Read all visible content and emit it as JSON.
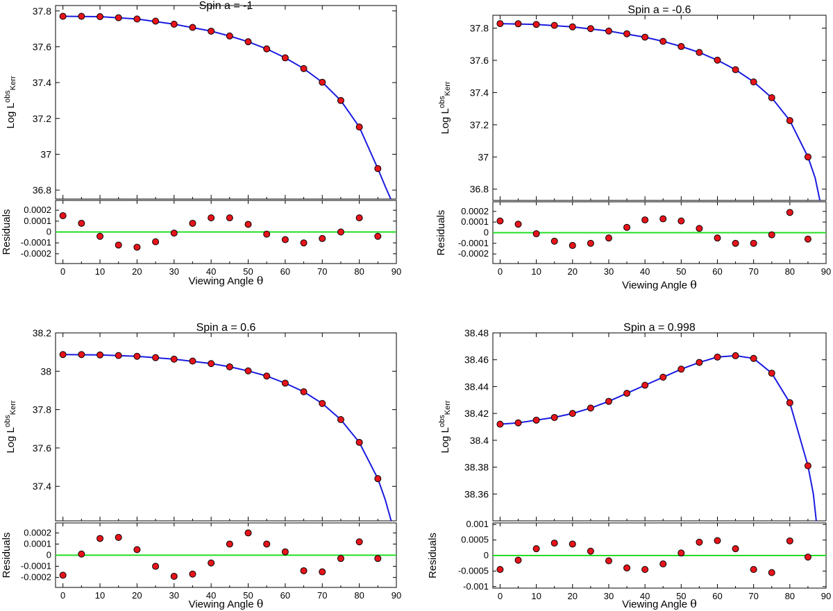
{
  "chart_data": [
    {
      "type": "scatter",
      "title": "Spin a  = -1",
      "xlabel": "Viewing Angle",
      "xlabel_symbol": "θ",
      "ylabel": "Log L",
      "ylabel_sup": "obs",
      "ylabel_sub": "Kerr",
      "xlim": [
        -2,
        90
      ],
      "xticks": [
        0,
        10,
        20,
        30,
        40,
        50,
        60,
        70,
        80,
        90
      ],
      "main": {
        "ylim": [
          36.75,
          37.83
        ],
        "yticks": [
          36.8,
          37,
          37.2,
          37.4,
          37.6,
          37.8
        ],
        "yticklabels": [
          "36.8",
          "37",
          "37.2",
          "37.4",
          "37.6",
          "37.8"
        ],
        "points": {
          "x": [
            0,
            5,
            10,
            15,
            20,
            25,
            30,
            35,
            40,
            45,
            50,
            55,
            60,
            65,
            70,
            75,
            80,
            85
          ],
          "y": [
            37.77,
            37.77,
            37.768,
            37.762,
            37.755,
            37.743,
            37.726,
            37.708,
            37.687,
            37.66,
            37.628,
            37.588,
            37.538,
            37.478,
            37.402,
            37.3,
            37.152,
            36.92
          ]
        },
        "model_line": {
          "x": [
            0,
            10,
            20,
            30,
            40,
            45,
            50,
            55,
            60,
            65,
            70,
            75,
            80,
            85,
            87,
            88.5
          ],
          "y": [
            37.77,
            37.768,
            37.755,
            37.726,
            37.687,
            37.66,
            37.628,
            37.588,
            37.538,
            37.478,
            37.402,
            37.3,
            37.152,
            36.92,
            36.82,
            36.75
          ]
        }
      },
      "residuals": {
        "ylabel": "Residuals",
        "ylim": [
          -0.00029,
          0.00029
        ],
        "yticks": [
          0.0002,
          0.0001,
          0,
          -0.0001,
          -0.0002
        ],
        "yticklabels": [
          "0.0002",
          "0.0001",
          "0",
          "-0.0001",
          "-0.0002"
        ],
        "points": {
          "x": [
            0,
            5,
            10,
            15,
            20,
            25,
            30,
            35,
            40,
            45,
            50,
            55,
            60,
            65,
            70,
            75,
            80,
            85
          ],
          "y": [
            0.00015,
            8e-05,
            -4e-05,
            -0.00012,
            -0.00014,
            -9e-05,
            -1e-05,
            8e-05,
            0.00013,
            0.00013,
            7e-05,
            -2e-05,
            -7e-05,
            -0.0001,
            -6e-05,
            0.0,
            0.00013,
            -4e-05
          ]
        }
      }
    },
    {
      "type": "scatter",
      "title": "Spin a  = -0.6",
      "xlabel": "Viewing Angle",
      "xlabel_symbol": "θ",
      "ylabel": "Log L",
      "ylabel_sup": "obs",
      "ylabel_sub": "Kerr",
      "xlim": [
        -2,
        90
      ],
      "xticks": [
        0,
        10,
        20,
        30,
        40,
        50,
        60,
        70,
        80,
        90
      ],
      "main": {
        "ylim": [
          36.73,
          37.88
        ],
        "yticks": [
          36.8,
          37,
          37.2,
          37.4,
          37.6,
          37.8
        ],
        "yticklabels": [
          "36.8",
          "37",
          "37.2",
          "37.4",
          "37.6",
          "37.8"
        ],
        "points": {
          "x": [
            0,
            5,
            10,
            15,
            20,
            25,
            30,
            35,
            40,
            45,
            50,
            55,
            60,
            65,
            70,
            75,
            80,
            85
          ],
          "y": [
            37.828,
            37.827,
            37.823,
            37.817,
            37.808,
            37.797,
            37.782,
            37.765,
            37.744,
            37.718,
            37.686,
            37.649,
            37.601,
            37.542,
            37.466,
            37.368,
            37.226,
            37.0
          ]
        },
        "model_line": {
          "x": [
            0,
            10,
            20,
            30,
            40,
            45,
            50,
            55,
            60,
            65,
            70,
            75,
            80,
            85,
            87,
            88.3
          ],
          "y": [
            37.828,
            37.823,
            37.808,
            37.782,
            37.744,
            37.718,
            37.686,
            37.649,
            37.601,
            37.542,
            37.466,
            37.368,
            37.226,
            37.0,
            36.87,
            36.73
          ]
        }
      },
      "residuals": {
        "ylabel": "Residuals",
        "ylim": [
          -0.00029,
          0.00029
        ],
        "yticks": [
          0.0002,
          0.0001,
          0,
          -0.0001,
          -0.0002
        ],
        "yticklabels": [
          "0.0002",
          "0.0001",
          "0",
          "-0.0001",
          "-0.0002"
        ],
        "points": {
          "x": [
            0,
            5,
            10,
            15,
            20,
            25,
            30,
            35,
            40,
            45,
            50,
            55,
            60,
            65,
            70,
            75,
            80,
            85
          ],
          "y": [
            0.00011,
            8e-05,
            -1e-05,
            -8e-05,
            -0.00012,
            -0.0001,
            -5e-05,
            5e-05,
            0.00012,
            0.00013,
            0.00011,
            4e-05,
            -5e-05,
            -0.0001,
            -0.0001,
            -2e-05,
            0.00019,
            -6e-05
          ]
        }
      }
    },
    {
      "type": "scatter",
      "title": "Spin a  = 0.6",
      "xlabel": "Viewing Angle",
      "xlabel_symbol": "θ",
      "ylabel": "Log L",
      "ylabel_sup": "obs",
      "ylabel_sub": "Kerr",
      "xlim": [
        -2,
        90
      ],
      "xticks": [
        0,
        10,
        20,
        30,
        40,
        50,
        60,
        70,
        80,
        90
      ],
      "main": {
        "ylim": [
          37.22,
          38.2
        ],
        "yticks": [
          37.4,
          37.6,
          37.8,
          38,
          38.2
        ],
        "yticklabels": [
          "37.4",
          "37.6",
          "37.8",
          "38",
          "38.2"
        ],
        "points": {
          "x": [
            0,
            5,
            10,
            15,
            20,
            25,
            30,
            35,
            40,
            45,
            50,
            55,
            60,
            65,
            70,
            75,
            80,
            85
          ],
          "y": [
            38.087,
            38.087,
            38.085,
            38.082,
            38.078,
            38.071,
            38.063,
            38.053,
            38.04,
            38.023,
            38.002,
            37.975,
            37.938,
            37.893,
            37.832,
            37.748,
            37.629,
            37.44
          ]
        },
        "model_line": {
          "x": [
            0,
            10,
            20,
            30,
            40,
            45,
            50,
            55,
            60,
            65,
            70,
            75,
            80,
            85,
            87,
            88.6
          ],
          "y": [
            38.087,
            38.085,
            38.078,
            38.063,
            38.04,
            38.023,
            38.002,
            37.975,
            37.938,
            37.893,
            37.832,
            37.748,
            37.629,
            37.44,
            37.33,
            37.22
          ]
        }
      },
      "residuals": {
        "ylabel": "Residuals",
        "ylim": [
          -0.00029,
          0.00029
        ],
        "yticks": [
          0.0002,
          0.0001,
          0,
          -0.0001,
          -0.0002
        ],
        "yticklabels": [
          "0.0002",
          "0.0001",
          "0",
          "-0.0001",
          "-0.0002"
        ],
        "points": {
          "x": [
            0,
            5,
            10,
            15,
            20,
            25,
            30,
            35,
            40,
            45,
            50,
            55,
            60,
            65,
            70,
            75,
            80,
            85
          ],
          "y": [
            -0.00018,
            1e-05,
            0.00015,
            0.00016,
            5e-05,
            -0.0001,
            -0.00019,
            -0.00017,
            -7e-05,
            0.0001,
            0.0002,
            0.0001,
            3e-05,
            -0.00014,
            -0.00015,
            -3e-05,
            0.00012,
            -3e-05
          ]
        }
      }
    },
    {
      "type": "scatter",
      "title": "Spin a  = 0.998",
      "xlabel": "Viewing Angle",
      "xlabel_symbol": "θ",
      "ylabel": "Log L",
      "ylabel_sup": "obs",
      "ylabel_sub": "Kerr",
      "xlim": [
        -2,
        90
      ],
      "xticks": [
        0,
        10,
        20,
        30,
        40,
        50,
        60,
        70,
        80,
        90
      ],
      "main": {
        "ylim": [
          38.34,
          38.48
        ],
        "yticks": [
          38.36,
          38.38,
          38.4,
          38.42,
          38.44,
          38.46,
          38.48
        ],
        "yticklabels": [
          "38.36",
          "38.38",
          "38.4",
          "38.42",
          "38.44",
          "38.46",
          "38.48"
        ],
        "points": {
          "x": [
            0,
            5,
            10,
            15,
            20,
            25,
            30,
            35,
            40,
            45,
            50,
            55,
            60,
            65,
            70,
            75,
            80,
            85
          ],
          "y": [
            38.412,
            38.413,
            38.415,
            38.417,
            38.42,
            38.424,
            38.429,
            38.435,
            38.441,
            38.447,
            38.453,
            38.458,
            38.462,
            38.463,
            38.461,
            38.45,
            38.428,
            38.381
          ]
        },
        "model_line": {
          "x": [
            0,
            5,
            10,
            15,
            20,
            25,
            30,
            35,
            40,
            45,
            50,
            55,
            60,
            65,
            70,
            75,
            80,
            85,
            86.5,
            87.3
          ],
          "y": [
            38.412,
            38.413,
            38.415,
            38.417,
            38.42,
            38.424,
            38.429,
            38.435,
            38.441,
            38.447,
            38.453,
            38.458,
            38.462,
            38.463,
            38.461,
            38.45,
            38.428,
            38.381,
            38.36,
            38.34
          ]
        }
      },
      "residuals": {
        "ylabel": "Residuals",
        "ylim": [
          -0.00105,
          0.00105
        ],
        "yticks": [
          0.001,
          0.0005,
          0,
          -0.0005,
          -0.001
        ],
        "yticklabels": [
          "0.001",
          "0.0005",
          "0",
          "-0.0005",
          "-0.001"
        ],
        "points": {
          "x": [
            0,
            5,
            10,
            15,
            20,
            25,
            30,
            35,
            40,
            45,
            50,
            55,
            60,
            65,
            70,
            75,
            80,
            85
          ],
          "y": [
            -0.00045,
            -0.00015,
            0.00022,
            0.0004,
            0.00037,
            0.00014,
            -0.00017,
            -0.0004,
            -0.00045,
            -0.00027,
            8e-05,
            0.00043,
            0.00048,
            0.00022,
            -0.00045,
            -0.00055,
            0.00047,
            -5e-05
          ]
        }
      }
    }
  ]
}
